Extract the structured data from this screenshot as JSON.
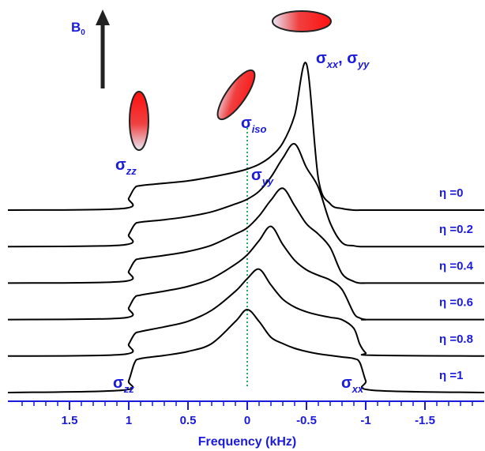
{
  "chart_data": {
    "type": "line",
    "x_label": "Frequency (kHz)",
    "xlim": [
      2,
      -2
    ],
    "xticks": [
      1.5,
      1,
      0.5,
      0,
      -0.5,
      -1,
      -1.5
    ],
    "xticks_minor": [
      1.9,
      1.8,
      1.7,
      1.6,
      1.4,
      1.3,
      1.2,
      1.1,
      0.9,
      0.8,
      0.7,
      0.6,
      0.4,
      0.3,
      0.2,
      0.1,
      -0.1,
      -0.2,
      -0.3,
      -0.4,
      -0.6,
      -0.7,
      -0.8,
      -0.9,
      -1.1,
      -1.2,
      -1.3,
      -1.4,
      -1.6,
      -1.7,
      -1.8,
      -1.9
    ],
    "axis_color": "#1a1adc",
    "field_label": {
      "base": "B",
      "sub": "0"
    },
    "reference_line": {
      "x": 0,
      "color": "#2aa866"
    },
    "x": [
      2,
      1.05,
      1,
      0.95,
      0.9,
      0.7,
      0.5,
      0.3,
      0.1,
      0,
      -0.1,
      -0.2,
      -0.3,
      -0.4,
      -0.5,
      -0.6,
      -0.7,
      -0.8,
      -0.9,
      -0.95,
      -1,
      -1.05,
      -2
    ],
    "series": [
      {
        "name": "η =0",
        "color": "#000000",
        "values": [
          0,
          2,
          15,
          28,
          31,
          34,
          37,
          42,
          48,
          52,
          58,
          68,
          85,
          120,
          185,
          40,
          8,
          2,
          0,
          0,
          0,
          0,
          0
        ]
      },
      {
        "name": "η =0.2",
        "color": "#000000",
        "values": [
          0,
          2,
          15,
          28,
          31,
          34,
          38,
          44,
          54,
          60,
          70,
          88,
          112,
          130,
          100,
          75,
          30,
          5,
          1,
          0,
          0,
          0,
          0
        ]
      },
      {
        "name": "η =0.4",
        "color": "#000000",
        "values": [
          0,
          2,
          15,
          28,
          31,
          35,
          40,
          48,
          62,
          70,
          85,
          105,
          120,
          98,
          75,
          62,
          45,
          12,
          2,
          0,
          0,
          0,
          0
        ]
      },
      {
        "name": "η =0.6",
        "color": "#000000",
        "values": [
          0,
          2,
          15,
          28,
          31,
          36,
          42,
          52,
          70,
          82,
          100,
          118,
          95,
          75,
          63,
          56,
          50,
          38,
          8,
          2,
          0,
          0,
          0
        ]
      },
      {
        "name": "η =0.8",
        "color": "#000000",
        "values": [
          0,
          2,
          15,
          28,
          31,
          37,
          44,
          58,
          82,
          98,
          110,
          90,
          72,
          62,
          56,
          52,
          49,
          46,
          35,
          15,
          4,
          1,
          0
        ]
      },
      {
        "name": "η =1",
        "color": "#000000",
        "values": [
          0,
          3,
          15,
          38,
          43,
          47,
          52,
          62,
          90,
          105,
          90,
          70,
          62,
          56,
          52,
          49,
          47,
          45,
          43,
          38,
          15,
          3,
          0
        ]
      }
    ],
    "annotations": [
      {
        "parts": [
          {
            "text": "σ"
          },
          {
            "text": "zz",
            "sub": true
          }
        ]
      },
      {
        "parts": [
          {
            "text": "σ"
          },
          {
            "text": "iso",
            "sub": true
          }
        ]
      },
      {
        "parts": [
          {
            "text": "σ"
          },
          {
            "text": "xx",
            "sub": true
          },
          {
            "text": ", σ"
          },
          {
            "text": "yy",
            "sub": true
          }
        ]
      },
      {
        "parts": [
          {
            "text": "σ"
          },
          {
            "text": "yy",
            "sub": true
          }
        ]
      },
      {
        "parts": [
          {
            "text": "σ"
          },
          {
            "text": "zz",
            "sub": true
          }
        ]
      },
      {
        "parts": [
          {
            "text": "σ"
          },
          {
            "text": "xx",
            "sub": true
          }
        ]
      }
    ]
  }
}
